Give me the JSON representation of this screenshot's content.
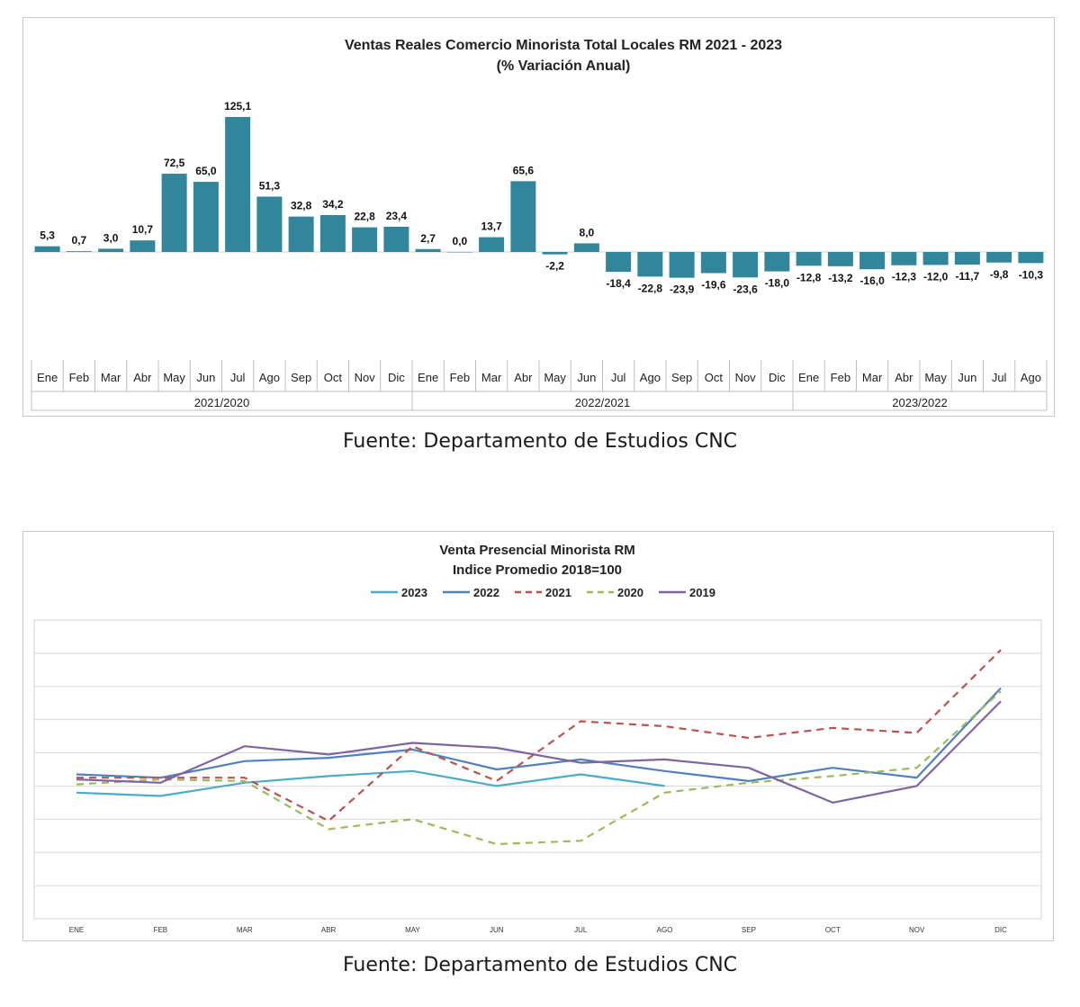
{
  "captions": {
    "top": "Fuente: Departamento de Estudios CNC",
    "bottom": "Fuente: Departamento de Estudios CNC"
  },
  "chart_data": [
    {
      "type": "bar",
      "title": "Ventas Reales Comercio Minorista  Total Locales RM 2021 - 2023",
      "subtitle": "(% Variación Anual)",
      "bar_color": "#31869b",
      "categories": [
        "Ene",
        "Feb",
        "Mar",
        "Abr",
        "May",
        "Jun",
        "Jul",
        "Ago",
        "Sep",
        "Oct",
        "Nov",
        "Dic",
        "Ene",
        "Feb",
        "Mar",
        "Abr",
        "May",
        "Jun",
        "Jul",
        "Ago",
        "Sep",
        "Oct",
        "Nov",
        "Dic",
        "Ene",
        "Feb",
        "Mar",
        "Abr",
        "May",
        "Jun",
        "Jul",
        "Ago"
      ],
      "groups": [
        {
          "label": "2021/2020",
          "count": 12
        },
        {
          "label": "2022/2021",
          "count": 12
        },
        {
          "label": "2023/2022",
          "count": 8
        }
      ],
      "values": [
        5.3,
        0.7,
        3.0,
        10.7,
        72.5,
        65.0,
        125.1,
        51.3,
        32.8,
        34.2,
        22.8,
        23.4,
        2.7,
        0.0,
        13.7,
        65.6,
        -2.2,
        8.0,
        -18.4,
        -22.8,
        -23.9,
        -19.6,
        -23.6,
        -18.0,
        -12.8,
        -13.2,
        -16.0,
        -12.3,
        -12.0,
        -11.7,
        -9.8,
        -10.3
      ],
      "data_labels": [
        "5,3",
        "0,7",
        "3,0",
        "10,7",
        "72,5",
        "65,0",
        "125,1",
        "51,3",
        "32,8",
        "34,2",
        "22,8",
        "23,4",
        "2,7",
        "0,0",
        "13,7",
        "65,6",
        "-2,2",
        "8,0",
        "-18,4",
        "-22,8",
        "-23,9",
        "-19,6",
        "-23,6",
        "-18,0",
        "-12,8",
        "-13,2",
        "-16,0",
        "-12,3",
        "-12,0",
        "-11,7",
        "-9,8",
        "-10,3"
      ]
    },
    {
      "type": "line",
      "title": "Venta Presencial Minorista RM",
      "subtitle": "Indice Promedio 2018=100",
      "categories": [
        "ENE",
        "FEB",
        "MAR",
        "ABR",
        "MAY",
        "JUN",
        "JUL",
        "AGO",
        "SEP",
        "OCT",
        "NOV",
        "DIC"
      ],
      "ylim": [
        60,
        150
      ],
      "grid": true,
      "legend_position": "top",
      "series": [
        {
          "name": "2023",
          "color": "#4bacc6",
          "dash": false,
          "values": [
            98,
            97,
            101,
            103,
            104.5,
            100,
            103.5,
            100,
            null,
            null,
            null,
            null
          ]
        },
        {
          "name": "2022",
          "color": "#4f81bd",
          "dash": false,
          "values": [
            103.5,
            102.5,
            107.5,
            108.5,
            111,
            105,
            108,
            104.5,
            101.5,
            105.5,
            102.5,
            129.5
          ]
        },
        {
          "name": "2021",
          "color": "#c0504d",
          "dash": true,
          "values": [
            102.5,
            102.5,
            102.5,
            89.5,
            112,
            101.5,
            119.5,
            118,
            114.5,
            117.5,
            116,
            141
          ]
        },
        {
          "name": "2020",
          "color": "#9bbb59",
          "dash": true,
          "values": [
            100.5,
            102,
            101.5,
            87,
            90,
            82.5,
            83.5,
            98,
            101,
            103,
            105.5,
            128.5
          ]
        },
        {
          "name": "2019",
          "color": "#8064a2",
          "dash": false,
          "values": [
            102,
            101,
            112,
            109.5,
            113,
            111.5,
            107,
            108,
            105.5,
            95,
            100,
            125.5
          ]
        }
      ]
    }
  ]
}
